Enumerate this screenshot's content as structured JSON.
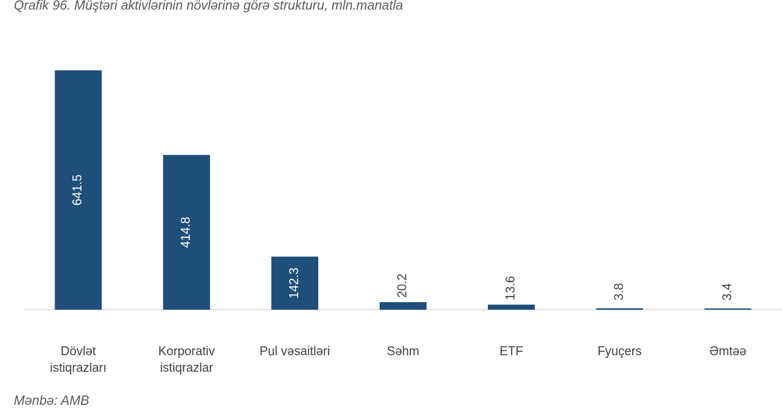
{
  "chart_data": {
    "type": "bar",
    "title": "Qrafik 96. Müştəri aktivlərinin növlərinə görə strukturu, mln.manatla",
    "categories": [
      "Dövlət istiqrazları",
      "Korporativ istiqrazlar",
      "Pul vəsaitləri",
      "Səhm",
      "ETF",
      "Fyuçers",
      "Əmtəə"
    ],
    "values": [
      641.5,
      414.8,
      142.3,
      20.2,
      13.6,
      3.8,
      3.4
    ],
    "color": "#1f4e79",
    "source": "Mənbə: AMB"
  }
}
